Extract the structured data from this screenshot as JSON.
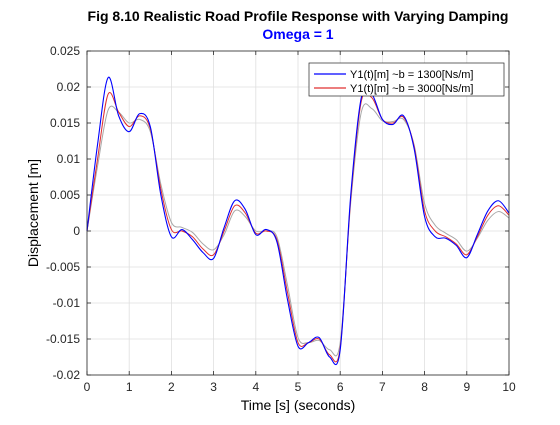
{
  "chart_data": {
    "type": "line",
    "title": "Fig 8.10 Realistic Road Profile Response with Varying Damping",
    "subtitle": "Omega = 1",
    "xlabel": "Time [s] (seconds)",
    "ylabel": "Displacement [m]",
    "xlim": [
      0,
      10
    ],
    "ylim": [
      -0.02,
      0.025
    ],
    "xticks": [
      0,
      1,
      2,
      3,
      4,
      5,
      6,
      7,
      8,
      9,
      10
    ],
    "xtick_labels": [
      "0",
      "1",
      "2",
      "3",
      "4",
      "5",
      "6",
      "7",
      "8",
      "9",
      "10"
    ],
    "yticks": [
      -0.02,
      -0.015,
      -0.01,
      -0.005,
      0,
      0.005,
      0.01,
      0.015,
      0.02,
      0.025
    ],
    "ytick_labels": [
      "-0.02",
      "-0.015",
      "-0.01",
      "-0.005",
      "0",
      "0.005",
      "0.01",
      "0.015",
      "0.02",
      "0.025"
    ],
    "grid": true,
    "legend_position": "top-right",
    "x": [
      0,
      0.25,
      0.5,
      0.75,
      1.0,
      1.25,
      1.5,
      1.75,
      2.0,
      2.25,
      2.5,
      2.75,
      3.0,
      3.25,
      3.5,
      3.75,
      4.0,
      4.25,
      4.5,
      4.75,
      5.0,
      5.25,
      5.5,
      5.75,
      6.0,
      6.25,
      6.5,
      6.75,
      7.0,
      7.25,
      7.5,
      7.75,
      8.0,
      8.25,
      8.5,
      8.75,
      9.0,
      9.25,
      9.5,
      9.75,
      10.0
    ],
    "series": [
      {
        "name": "Y1(t)[m] ~b = 1300[Ns/m]",
        "color": "#0000ff",
        "values": [
          0,
          0.012,
          0.0213,
          0.016,
          0.0138,
          0.0163,
          0.0145,
          0.005,
          -0.0008,
          0.0002,
          -0.0012,
          -0.003,
          -0.0038,
          0.0005,
          0.0042,
          0.003,
          -0.0005,
          0.0002,
          -0.0015,
          -0.0095,
          -0.016,
          -0.0155,
          -0.0148,
          -0.0175,
          -0.0165,
          0.005,
          0.0185,
          0.019,
          0.0155,
          0.0148,
          0.016,
          0.0115,
          0.002,
          -0.0008,
          -0.001,
          -0.002,
          -0.0037,
          -0.0005,
          0.0028,
          0.0042,
          0.0025
        ]
      },
      {
        "name": "Y1(t)[m] ~b = 3000[Ns/m]",
        "color": "#e03030",
        "values": [
          0,
          0.01,
          0.019,
          0.0165,
          0.0145,
          0.016,
          0.0142,
          0.0058,
          0.0002,
          0.0,
          -0.0008,
          -0.0025,
          -0.0033,
          0.0,
          0.0035,
          0.0025,
          -0.0003,
          0.0,
          -0.0012,
          -0.0085,
          -0.0155,
          -0.0155,
          -0.015,
          -0.0172,
          -0.0162,
          0.0045,
          0.018,
          0.0185,
          0.0155,
          0.015,
          0.0158,
          0.0118,
          0.0028,
          0.0,
          -0.0008,
          -0.0018,
          -0.0033,
          -0.0008,
          0.0022,
          0.0035,
          0.0022
        ]
      },
      {
        "name": "",
        "color": "#a8a8a8",
        "values": [
          0,
          0.009,
          0.0168,
          0.0165,
          0.015,
          0.0155,
          0.0138,
          0.0065,
          0.0012,
          0.0005,
          -0.0002,
          -0.0018,
          -0.0026,
          -0.0005,
          0.0028,
          0.002,
          0.0,
          0.0,
          -0.0008,
          -0.0075,
          -0.0148,
          -0.0155,
          -0.0152,
          -0.0165,
          -0.0155,
          0.004,
          0.0165,
          0.017,
          0.0153,
          0.0152,
          0.0155,
          0.012,
          0.0038,
          0.0008,
          -0.0003,
          -0.0012,
          -0.0028,
          -0.001,
          0.0015,
          0.0027,
          0.0018
        ]
      }
    ]
  }
}
